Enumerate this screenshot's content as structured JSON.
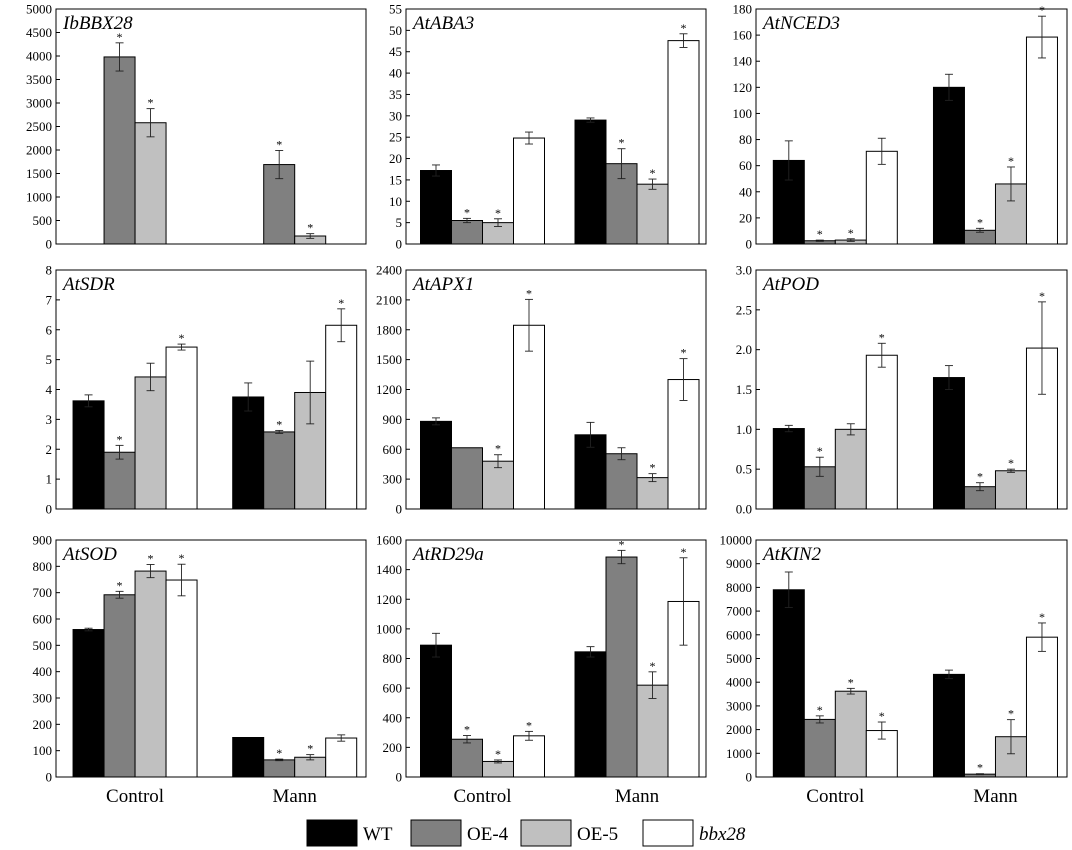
{
  "colors": {
    "WT": "#000000",
    "OE-4": "#808080",
    "OE-5": "#c0c0c0",
    "bbx28": "#ffffff"
  },
  "legend": {
    "items": [
      {
        "name": "WT",
        "italic": false
      },
      {
        "name": "OE-4",
        "italic": false
      },
      {
        "name": "OE-5",
        "italic": false
      },
      {
        "name": "bbx28",
        "italic": true
      }
    ]
  },
  "chart_data": [
    {
      "type": "bar",
      "title": "IbBBX28",
      "categories": [
        "Control",
        "Mann"
      ],
      "ylim": [
        0,
        5000
      ],
      "yticks": [
        0,
        500,
        1000,
        1500,
        2000,
        2500,
        3000,
        3500,
        4000,
        4500,
        5000
      ],
      "series": [
        {
          "name": "WT",
          "values": [
            0,
            0
          ],
          "errors": [
            0,
            0
          ],
          "sig": [
            false,
            false
          ]
        },
        {
          "name": "OE-4",
          "values": [
            3980,
            1690
          ],
          "errors": [
            300,
            300
          ],
          "sig": [
            true,
            true
          ]
        },
        {
          "name": "OE-5",
          "values": [
            2580,
            170
          ],
          "errors": [
            300,
            50
          ],
          "sig": [
            true,
            true
          ]
        },
        {
          "name": "bbx28",
          "values": [
            0,
            0
          ],
          "errors": [
            0,
            0
          ],
          "sig": [
            false,
            false
          ]
        }
      ]
    },
    {
      "type": "bar",
      "title": "AtABA3",
      "categories": [
        "Control",
        "Mann"
      ],
      "ylim": [
        0,
        55
      ],
      "yticks": [
        0,
        5,
        10,
        15,
        20,
        25,
        30,
        35,
        40,
        45,
        50,
        55
      ],
      "series": [
        {
          "name": "WT",
          "values": [
            17.2,
            29.0
          ],
          "errors": [
            1.3,
            0.5
          ],
          "sig": [
            false,
            false
          ]
        },
        {
          "name": "OE-4",
          "values": [
            5.5,
            18.8
          ],
          "errors": [
            0.5,
            3.5
          ],
          "sig": [
            true,
            true
          ]
        },
        {
          "name": "OE-5",
          "values": [
            5.0,
            14.0
          ],
          "errors": [
            0.9,
            1.2
          ],
          "sig": [
            true,
            true
          ]
        },
        {
          "name": "bbx28",
          "values": [
            24.8,
            47.6
          ],
          "errors": [
            1.4,
            1.6
          ],
          "sig": [
            false,
            true
          ]
        }
      ]
    },
    {
      "type": "bar",
      "title": "AtNCED3",
      "categories": [
        "Control",
        "Mann"
      ],
      "ylim": [
        0,
        180
      ],
      "yticks": [
        0,
        20,
        40,
        60,
        80,
        100,
        120,
        140,
        160,
        180
      ],
      "series": [
        {
          "name": "WT",
          "values": [
            64,
            120
          ],
          "errors": [
            15,
            10
          ],
          "sig": [
            false,
            false
          ]
        },
        {
          "name": "OE-4",
          "values": [
            2.5,
            10.5
          ],
          "errors": [
            0.5,
            1.5
          ],
          "sig": [
            true,
            true
          ]
        },
        {
          "name": "OE-5",
          "values": [
            3,
            46
          ],
          "errors": [
            1,
            13
          ],
          "sig": [
            true,
            true
          ]
        },
        {
          "name": "bbx28",
          "values": [
            71,
            158.5
          ],
          "errors": [
            10,
            16
          ],
          "sig": [
            false,
            true
          ]
        }
      ]
    },
    {
      "type": "bar",
      "title": "AtSDR",
      "categories": [
        "Control",
        "Mann"
      ],
      "ylim": [
        0,
        8
      ],
      "yticks": [
        0,
        1,
        2,
        3,
        4,
        5,
        6,
        7,
        8
      ],
      "series": [
        {
          "name": "WT",
          "values": [
            3.62,
            3.75
          ],
          "errors": [
            0.2,
            0.47
          ],
          "sig": [
            false,
            false
          ]
        },
        {
          "name": "OE-4",
          "values": [
            1.9,
            2.58
          ],
          "errors": [
            0.23,
            0.05
          ],
          "sig": [
            true,
            true
          ]
        },
        {
          "name": "OE-5",
          "values": [
            4.42,
            3.9
          ],
          "errors": [
            0.46,
            1.05
          ],
          "sig": [
            false,
            false
          ]
        },
        {
          "name": "bbx28",
          "values": [
            5.42,
            6.15
          ],
          "errors": [
            0.1,
            0.55
          ],
          "sig": [
            true,
            true
          ]
        }
      ]
    },
    {
      "type": "bar",
      "title": "AtAPX1",
      "categories": [
        "Control",
        "Mann"
      ],
      "ylim": [
        0,
        2400
      ],
      "yticks": [
        0,
        300,
        600,
        900,
        1200,
        1500,
        1800,
        2100,
        2400
      ],
      "series": [
        {
          "name": "WT",
          "values": [
            880,
            745
          ],
          "errors": [
            35,
            125
          ],
          "sig": [
            false,
            false
          ]
        },
        {
          "name": "OE-4",
          "values": [
            615,
            555
          ],
          "errors": [
            0,
            60
          ],
          "sig": [
            false,
            false
          ]
        },
        {
          "name": "OE-5",
          "values": [
            480,
            315
          ],
          "errors": [
            65,
            40
          ],
          "sig": [
            true,
            true
          ]
        },
        {
          "name": "bbx28",
          "values": [
            1845,
            1300
          ],
          "errors": [
            260,
            210
          ],
          "sig": [
            true,
            true
          ]
        }
      ]
    },
    {
      "type": "bar",
      "title": "AtPOD",
      "categories": [
        "Control",
        "Mann"
      ],
      "ylim": [
        0,
        3.0
      ],
      "yticks": [
        0,
        0.5,
        1.0,
        1.5,
        2.0,
        2.5,
        3.0
      ],
      "series": [
        {
          "name": "WT",
          "values": [
            1.01,
            1.65
          ],
          "errors": [
            0.04,
            0.15
          ],
          "sig": [
            false,
            false
          ]
        },
        {
          "name": "OE-4",
          "values": [
            0.53,
            0.28
          ],
          "errors": [
            0.12,
            0.05
          ],
          "sig": [
            true,
            true
          ]
        },
        {
          "name": "OE-5",
          "values": [
            1.0,
            0.48
          ],
          "errors": [
            0.07,
            0.02
          ],
          "sig": [
            false,
            true
          ]
        },
        {
          "name": "bbx28",
          "values": [
            1.93,
            2.02
          ],
          "errors": [
            0.15,
            0.58
          ],
          "sig": [
            true,
            true
          ]
        }
      ]
    },
    {
      "type": "bar",
      "title": "AtSOD",
      "categories": [
        "Control",
        "Mann"
      ],
      "ylim": [
        0,
        900
      ],
      "yticks": [
        0,
        100,
        200,
        300,
        400,
        500,
        600,
        700,
        800,
        900
      ],
      "series": [
        {
          "name": "WT",
          "values": [
            560,
            150
          ],
          "errors": [
            5,
            0
          ],
          "sig": [
            false,
            false
          ]
        },
        {
          "name": "OE-4",
          "values": [
            692,
            65
          ],
          "errors": [
            13,
            3
          ],
          "sig": [
            true,
            true
          ]
        },
        {
          "name": "OE-5",
          "values": [
            782,
            75
          ],
          "errors": [
            25,
            10
          ],
          "sig": [
            true,
            true
          ]
        },
        {
          "name": "bbx28",
          "values": [
            748,
            148
          ],
          "errors": [
            60,
            12
          ],
          "sig": [
            true,
            false
          ]
        }
      ]
    },
    {
      "type": "bar",
      "title": "AtRD29a",
      "categories": [
        "Control",
        "Mann"
      ],
      "ylim": [
        0,
        1600
      ],
      "yticks": [
        0,
        200,
        400,
        600,
        800,
        1000,
        1200,
        1400,
        1600
      ],
      "series": [
        {
          "name": "WT",
          "values": [
            890,
            845
          ],
          "errors": [
            80,
            35
          ],
          "sig": [
            false,
            false
          ]
        },
        {
          "name": "OE-4",
          "values": [
            255,
            1485
          ],
          "errors": [
            25,
            45
          ],
          "sig": [
            true,
            true
          ]
        },
        {
          "name": "OE-5",
          "values": [
            105,
            620
          ],
          "errors": [
            10,
            90
          ],
          "sig": [
            true,
            true
          ]
        },
        {
          "name": "bbx28",
          "values": [
            278,
            1185
          ],
          "errors": [
            30,
            295
          ],
          "sig": [
            true,
            true
          ]
        }
      ]
    },
    {
      "type": "bar",
      "title": "AtKIN2",
      "categories": [
        "Control",
        "Mann"
      ],
      "ylim": [
        0,
        10000
      ],
      "yticks": [
        0,
        1000,
        2000,
        3000,
        4000,
        5000,
        6000,
        7000,
        8000,
        9000,
        10000
      ],
      "series": [
        {
          "name": "WT",
          "values": [
            7900,
            4330
          ],
          "errors": [
            750,
            180
          ],
          "sig": [
            false,
            false
          ]
        },
        {
          "name": "OE-4",
          "values": [
            2430,
            120
          ],
          "errors": [
            150,
            20
          ],
          "sig": [
            true,
            true
          ]
        },
        {
          "name": "OE-5",
          "values": [
            3620,
            1700
          ],
          "errors": [
            120,
            720
          ],
          "sig": [
            true,
            true
          ]
        },
        {
          "name": "bbx28",
          "values": [
            1960,
            5900
          ],
          "errors": [
            360,
            600
          ],
          "sig": [
            true,
            true
          ]
        }
      ]
    }
  ]
}
